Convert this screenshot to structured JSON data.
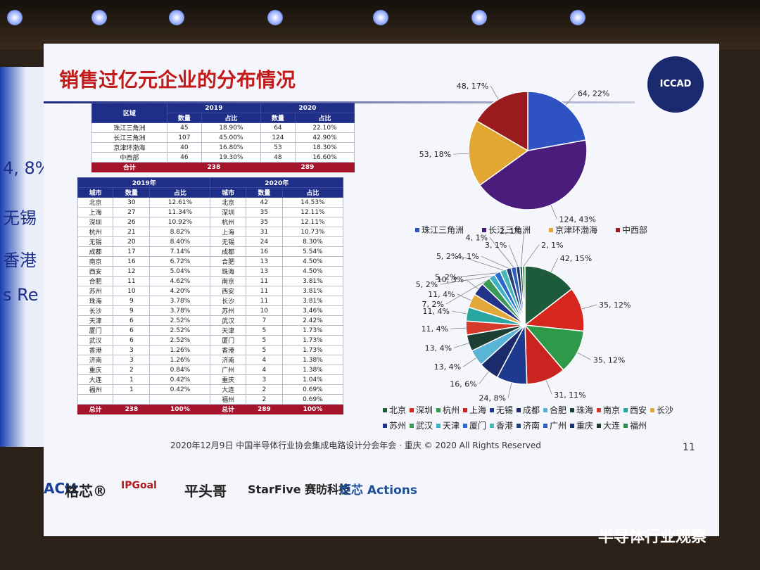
{
  "title": "销售过亿元企业的分布情况",
  "logo": "ICCAD",
  "left_fragments": [
    "4, 8%",
    "无锡",
    "香港",
    "s Re"
  ],
  "region_table": {
    "header": [
      "区域",
      "2019",
      "2020"
    ],
    "subheader": [
      "数量",
      "占比",
      "数量",
      "占比"
    ],
    "rows": [
      [
        "珠江三角洲",
        45,
        "18.90%",
        64,
        "22.10%"
      ],
      [
        "长江三角洲",
        107,
        "45.00%",
        124,
        "42.90%"
      ],
      [
        "京津环渤海",
        40,
        "16.80%",
        53,
        "18.30%"
      ],
      [
        "中西部",
        46,
        "19.30%",
        48,
        "16.60%"
      ]
    ],
    "total": [
      "合计",
      238,
      289
    ]
  },
  "city_table": {
    "years": [
      "2019年",
      "2020年"
    ],
    "subheader": [
      "城市",
      "数量",
      "占比",
      "城市",
      "数量",
      "占比"
    ],
    "rows_2019": [
      [
        "北京",
        30,
        "12.61%"
      ],
      [
        "上海",
        27,
        "11.34%"
      ],
      [
        "深圳",
        26,
        "10.92%"
      ],
      [
        "杭州",
        21,
        "8.82%"
      ],
      [
        "无锡",
        20,
        "8.40%"
      ],
      [
        "成都",
        17,
        "7.14%"
      ],
      [
        "南京",
        16,
        "6.72%"
      ],
      [
        "西安",
        12,
        "5.04%"
      ],
      [
        "合肥",
        11,
        "4.62%"
      ],
      [
        "苏州",
        10,
        "4.20%"
      ],
      [
        "珠海",
        9,
        "3.78%"
      ],
      [
        "长沙",
        9,
        "3.78%"
      ],
      [
        "天津",
        6,
        "2.52%"
      ],
      [
        "厦门",
        6,
        "2.52%"
      ],
      [
        "武汉",
        6,
        "2.52%"
      ],
      [
        "香港",
        3,
        "1.26%"
      ],
      [
        "济南",
        3,
        "1.26%"
      ],
      [
        "重庆",
        2,
        "0.84%"
      ],
      [
        "大连",
        1,
        "0.42%"
      ],
      [
        "福州",
        1,
        "0.42%"
      ]
    ],
    "rows_2020": [
      [
        "北京",
        42,
        "14.53%"
      ],
      [
        "深圳",
        35,
        "12.11%"
      ],
      [
        "杭州",
        35,
        "12.11%"
      ],
      [
        "上海",
        31,
        "10.73%"
      ],
      [
        "无锡",
        24,
        "8.30%"
      ],
      [
        "成都",
        16,
        "5.54%"
      ],
      [
        "合肥",
        13,
        "4.50%"
      ],
      [
        "珠海",
        13,
        "4.50%"
      ],
      [
        "南京",
        11,
        "3.81%"
      ],
      [
        "西安",
        11,
        "3.81%"
      ],
      [
        "长沙",
        11,
        "3.81%"
      ],
      [
        "苏州",
        10,
        "3.46%"
      ],
      [
        "武汉",
        7,
        "2.42%"
      ],
      [
        "天津",
        5,
        "1.73%"
      ],
      [
        "厦门",
        5,
        "1.73%"
      ],
      [
        "香港",
        5,
        "1.73%"
      ],
      [
        "济南",
        4,
        "1.38%"
      ],
      [
        "广州",
        4,
        "1.38%"
      ],
      [
        "重庆",
        3,
        "1.04%"
      ],
      [
        "大连",
        2,
        "0.69%"
      ],
      [
        "福州",
        2,
        "0.69%"
      ]
    ],
    "total": [
      "总计",
      238,
      "100%",
      "总计",
      289,
      "100%"
    ]
  },
  "chart_data": [
    {
      "type": "pie",
      "categories": [
        "珠江三角洲",
        "长江三角洲",
        "京津环渤海",
        "中西部"
      ],
      "values": [
        64,
        124,
        53,
        48
      ],
      "value_labels": [
        "64, 22%",
        "124, 43%",
        "53, 18%",
        "48, 17%"
      ],
      "colors": [
        "#2f52c2",
        "#4a1c7c",
        "#e2a733",
        "#9a1b1e"
      ]
    },
    {
      "type": "pie",
      "categories": [
        "北京",
        "深圳",
        "杭州",
        "上海",
        "无锡",
        "成都",
        "合肥",
        "珠海",
        "南京",
        "西安",
        "长沙",
        "苏州",
        "武汉",
        "天津",
        "厦门",
        "香港",
        "济南",
        "广州",
        "重庆",
        "大连",
        "福州"
      ],
      "values": [
        42,
        35,
        35,
        31,
        24,
        16,
        13,
        13,
        11,
        11,
        11,
        10,
        7,
        5,
        5,
        5,
        4,
        4,
        3,
        2,
        2
      ],
      "value_labels": [
        "42, 15%",
        "35, 12%",
        "35, 12%",
        "31, 11%",
        "24, 8%",
        "16, 6%",
        "13, 4%",
        "13, 4%",
        "11, 4%",
        "11, 4%",
        "11, 4%",
        "10, 3%",
        "7, 2%",
        "5, 2%",
        "5, 2%",
        "5, 2%",
        "4, 1%",
        "4, 1%",
        "3, 1%",
        "2, 1%",
        "2, 1%"
      ],
      "colors": [
        "#1e5b3a",
        "#d7261e",
        "#2c9a49",
        "#c9241f",
        "#1d3a8f",
        "#1a2a6b",
        "#5ab4d6",
        "#1c3f33",
        "#d63a2a",
        "#2aa6a0",
        "#e0a73a",
        "#24338a",
        "#3a9a5a",
        "#3cb0c8",
        "#2d6ad0",
        "#49b6b6",
        "#23407a",
        "#2f5fc0",
        "#1b3270",
        "#203a2e",
        "#2e8a4e"
      ]
    }
  ],
  "footer": "2020年12月9日  中国半导体行业协会集成电路设计分会年会 · 重庆 © 2020 All Rights Reserved",
  "page_number": "11",
  "sponsors": [
    "ACtt",
    "格芯®",
    "IPGoal",
    "平头哥",
    "StarFive 赛昉科技",
    "炬芯 Actions"
  ],
  "watermark": "半导体行业观察"
}
